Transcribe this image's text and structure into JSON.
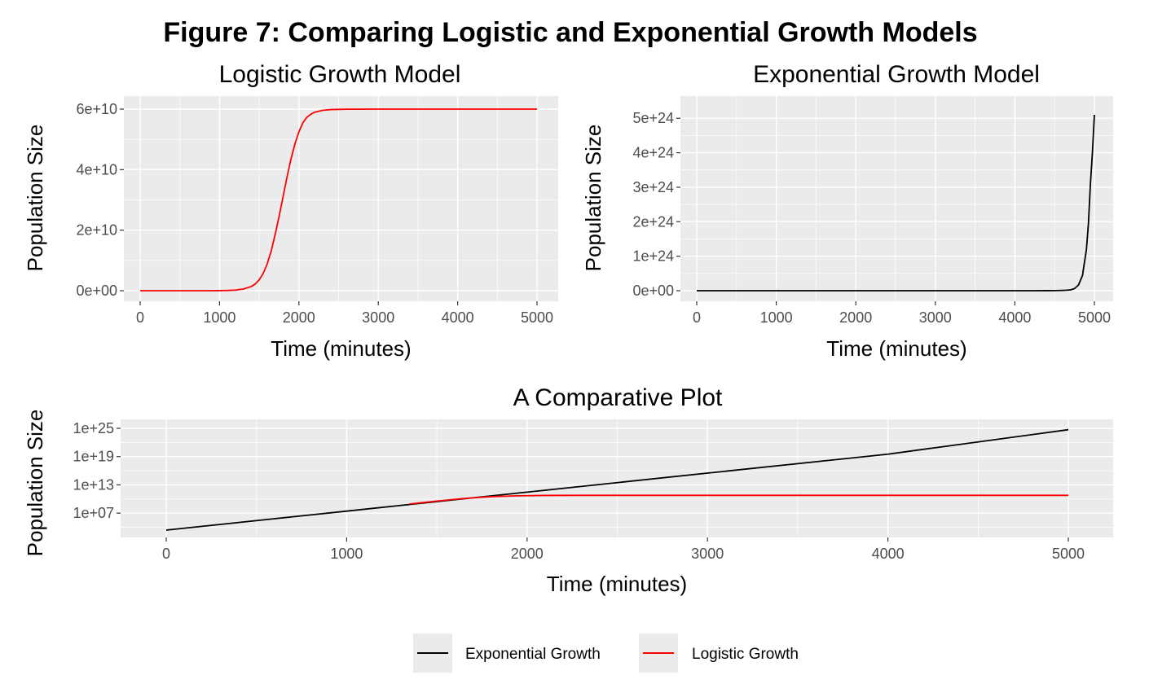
{
  "figure": {
    "title": "Figure 7: Comparing Logistic and Exponential Growth Models"
  },
  "chart_data": [
    {
      "type": "line",
      "title": "Logistic Growth Model",
      "xlabel": "Time (minutes)",
      "ylabel": "Population Size",
      "xlim": [
        0,
        5000
      ],
      "ylim": [
        0,
        60000000000
      ],
      "x_ticks": [
        0,
        1000,
        2000,
        3000,
        4000,
        5000
      ],
      "x_tick_labels": [
        "0",
        "1000",
        "2000",
        "3000",
        "4000",
        "5000"
      ],
      "y_ticks": [
        0,
        20000000000,
        40000000000,
        60000000000
      ],
      "y_tick_labels": [
        "0e+00",
        "2e+10",
        "4e+10",
        "6e+10"
      ],
      "grid": true,
      "series": [
        {
          "name": "Logistic Growth",
          "color": "#ff0000",
          "x": [
            0,
            200,
            400,
            600,
            800,
            1000,
            1100,
            1200,
            1300,
            1400,
            1450,
            1500,
            1550,
            1600,
            1650,
            1700,
            1750,
            1800,
            1850,
            1900,
            1950,
            2000,
            2050,
            2100,
            2150,
            2200,
            2300,
            2400,
            2600,
            3000,
            4000,
            5000
          ],
          "y": [
            0,
            0,
            0,
            0,
            0,
            30000000,
            80000000,
            200000000,
            530000000,
            1400000000,
            2200000000,
            3600000000,
            5700000000,
            8800000000,
            13000000000,
            18500000000,
            24500000000,
            31000000000,
            37500000000,
            43500000000,
            48500000000,
            52500000000,
            55500000000,
            57300000000,
            58300000000,
            59000000000,
            59600000000,
            59850000000,
            59970000000,
            60000000000,
            60000000000,
            60000000000
          ]
        }
      ]
    },
    {
      "type": "line",
      "title": "Exponential Growth Model",
      "xlabel": "Time (minutes)",
      "ylabel": "Population Size",
      "xlim": [
        0,
        5000
      ],
      "ylim": [
        0,
        5.1e+24
      ],
      "x_ticks": [
        0,
        1000,
        2000,
        3000,
        4000,
        5000
      ],
      "x_tick_labels": [
        "0",
        "1000",
        "2000",
        "3000",
        "4000",
        "5000"
      ],
      "y_ticks": [
        0,
        1e+24,
        2e+24,
        3e+24,
        4e+24,
        5e+24
      ],
      "y_tick_labels": [
        "0e+00",
        "1e+24",
        "2e+24",
        "3e+24",
        "4e+24",
        "5e+24"
      ],
      "grid": true,
      "series": [
        {
          "name": "Exponential Growth",
          "color": "#000000",
          "x": [
            0,
            1000,
            2000,
            3000,
            4000,
            4200,
            4400,
            4500,
            4550,
            4600,
            4650,
            4700,
            4750,
            4800,
            4850,
            4900,
            4925,
            4950,
            4975,
            5000
          ],
          "y": [
            2500,
            27000000.0,
            290000000000.0,
            3100000000000000.0,
            3.3e+19,
            2.05e+20,
            1.2e+21,
            3.1e+21,
            5.2e+21,
            8.5e+21,
            1.4e+22,
            2.3e+22,
            6.2e+22,
            1.65e+23,
            4.4e+23,
            1.2e+24,
            1.95e+24,
            3.1e+24,
            4e+24,
            5.1e+24
          ]
        }
      ]
    },
    {
      "type": "line",
      "title": "A Comparative Plot",
      "xlabel": "Time (minutes)",
      "ylabel": "Population Size",
      "y_scale": "log10",
      "xlim": [
        0,
        5000
      ],
      "ylim_log10": [
        3.4,
        25
      ],
      "x_ticks": [
        0,
        1000,
        2000,
        3000,
        4000,
        5000
      ],
      "x_tick_labels": [
        "0",
        "1000",
        "2000",
        "3000",
        "4000",
        "5000"
      ],
      "y_ticks_log10": [
        7,
        13,
        19,
        25
      ],
      "y_tick_labels": [
        "1e+07",
        "1e+13",
        "1e+19",
        "1e+25"
      ],
      "grid": true,
      "series": [
        {
          "name": "Exponential Growth",
          "color": "#000000",
          "x": [
            0,
            1000,
            2000,
            3000,
            4000,
            5000
          ],
          "y": [
            2500,
            27000000.0,
            290000000000.0,
            3100000000000000.0,
            3.3e+19,
            5.1e+24
          ]
        },
        {
          "name": "Logistic Growth",
          "color": "#ff0000",
          "x": [
            1350,
            1500,
            1650,
            1800,
            1950,
            2100,
            2300,
            2500,
            3000,
            4000,
            5000
          ],
          "y": [
            900000000,
            3600000000,
            13000000000,
            31000000000,
            48500000000,
            57300000000,
            59600000000,
            59900000000,
            60000000000,
            60000000000,
            60000000000
          ]
        }
      ]
    }
  ],
  "legend": {
    "position": "bottom",
    "items": [
      {
        "label": "Exponential Growth",
        "color": "#000000"
      },
      {
        "label": "Logistic Growth",
        "color": "#ff0000"
      }
    ]
  }
}
